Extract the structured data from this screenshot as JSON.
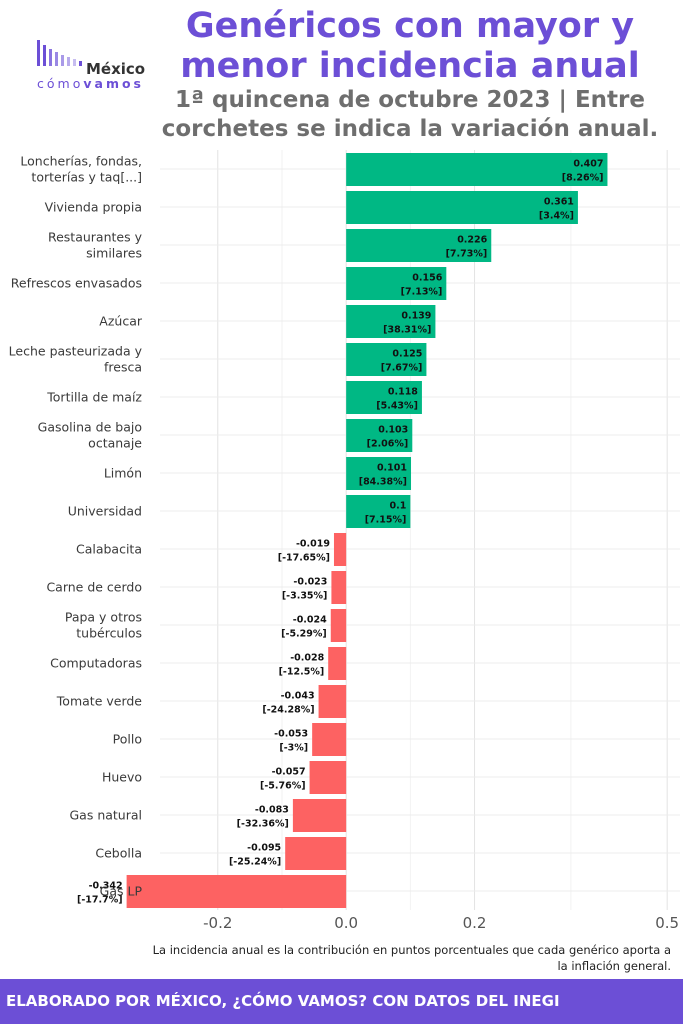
{
  "header": {
    "title": "Genéricos con mayor y menor incidencia anual",
    "subtitle": "1ª quincena de octubre 2023 | Entre corchetes se indica la variación anual."
  },
  "logo": {
    "word1": "México",
    "word2a": "cómo",
    "word2b": "vamos"
  },
  "caption": "La incidencia anual es la contribución en puntos porcentuales que cada genérico aporta a la inflación general.",
  "footer": {
    "text": "ELABORADO POR MÉXICO, ¿CÓMO VAMOS? CON DATOS DEL INEGI"
  },
  "colors": {
    "positive": "#00b884",
    "negative": "#fd6262",
    "accent": "#6c4fd6"
  },
  "chart_data": {
    "type": "bar",
    "orientation": "horizontal",
    "grid": true,
    "xlim": [
      -0.29,
      0.52
    ],
    "xticks": [
      -0.2,
      0.0,
      0.2,
      0.5
    ],
    "xtick_labels": [
      "-0.2",
      "0.0",
      "0.2",
      "0.5"
    ],
    "categories": [
      [
        "Loncherías, fondas,",
        "torterías y taq[...]"
      ],
      [
        "Vivienda propia"
      ],
      [
        "Restaurantes y",
        "similares"
      ],
      [
        "Refrescos envasados"
      ],
      [
        "Azúcar"
      ],
      [
        "Leche pasteurizada y",
        "fresca"
      ],
      [
        "Tortilla de maíz"
      ],
      [
        "Gasolina de bajo",
        "octanaje"
      ],
      [
        "Limón"
      ],
      [
        "Universidad"
      ],
      [
        "Calabacita"
      ],
      [
        "Carne de cerdo"
      ],
      [
        "Papa y otros",
        "tubérculos"
      ],
      [
        "Computadoras"
      ],
      [
        "Tomate verde"
      ],
      [
        "Pollo"
      ],
      [
        "Huevo"
      ],
      [
        "Gas natural"
      ],
      [
        "Cebolla"
      ],
      [
        "Gas LP"
      ]
    ],
    "values": [
      0.407,
      0.361,
      0.226,
      0.156,
      0.139,
      0.125,
      0.118,
      0.103,
      0.101,
      0.1,
      -0.019,
      -0.023,
      -0.024,
      -0.028,
      -0.043,
      -0.053,
      -0.057,
      -0.083,
      -0.095,
      -0.342
    ],
    "value_labels": [
      "0.407",
      "0.361",
      "0.226",
      "0.156",
      "0.139",
      "0.125",
      "0.118",
      "0.103",
      "0.101",
      "0.1",
      "-0.019",
      "-0.023",
      "-0.024",
      "-0.028",
      "-0.043",
      "-0.053",
      "-0.057",
      "-0.083",
      "-0.095",
      "-0.342"
    ],
    "annual_variation": [
      "[8.26%]",
      "[3.4%]",
      "[7.73%]",
      "[7.13%]",
      "[38.31%]",
      "[7.67%]",
      "[5.43%]",
      "[2.06%]",
      "[84.38%]",
      "[7.15%]",
      "[-17.65%]",
      "[-3.35%]",
      "[-5.29%]",
      "[-12.5%]",
      "[-24.28%]",
      "[-3%]",
      "[-5.76%]",
      "[-32.36%]",
      "[-25.24%]",
      "[-17.7%]"
    ]
  }
}
